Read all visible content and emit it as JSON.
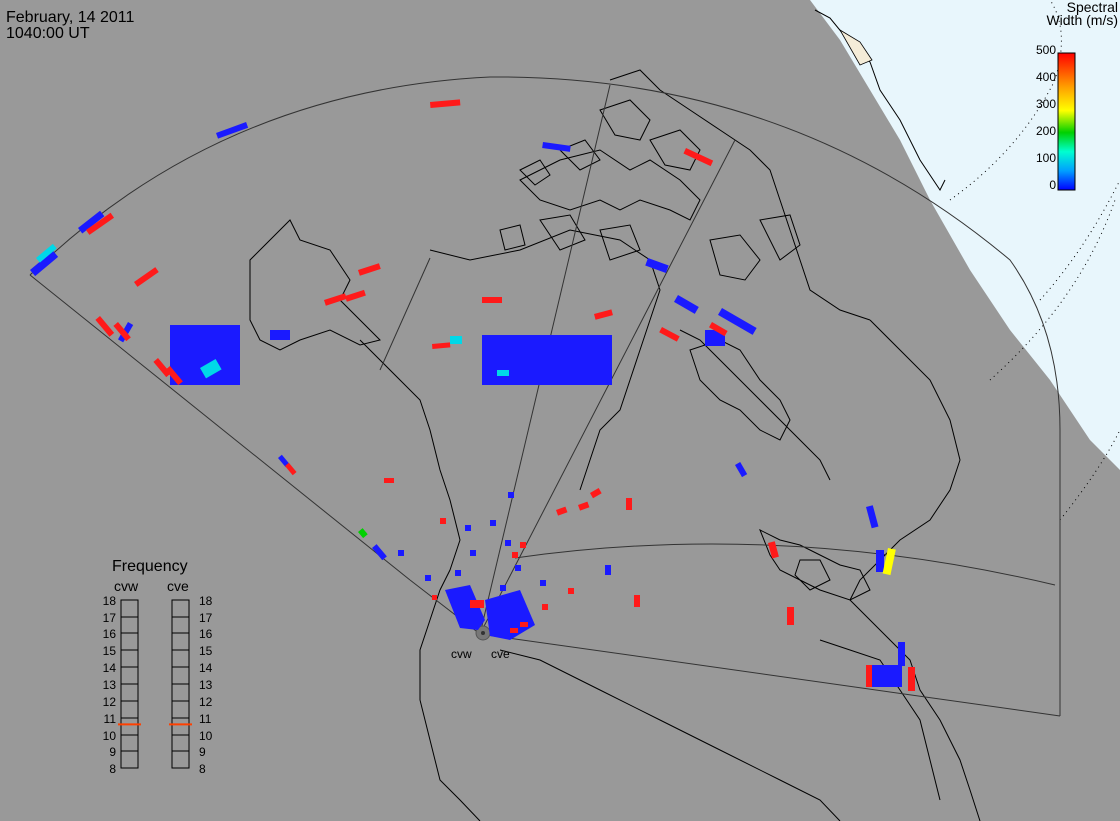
{
  "header": {
    "date": "February, 14 2011",
    "time": "1040:00 UT"
  },
  "color_scale": {
    "title_line1": "Spectral",
    "title_line2": "Width (m/s)",
    "labels": [
      "500",
      "400",
      "300",
      "200",
      "100",
      "0"
    ],
    "gradient_colors": [
      "#ff0000",
      "#ffa000",
      "#ffff00",
      "#00d000",
      "#00ffd0",
      "#00a0ff",
      "#0000ff"
    ]
  },
  "radars": {
    "west": "cvw",
    "east": "cve"
  },
  "frequency_panel": {
    "title": "Frequency",
    "left_label": "cvw",
    "right_label": "cve",
    "ticks": [
      "18",
      "17",
      "16",
      "15",
      "14",
      "13",
      "12",
      "11",
      "10",
      "9",
      "8"
    ],
    "cvw_value": 10.6,
    "cve_value": 10.6
  },
  "colors": {
    "background": "#999999",
    "polar_cap": "#e8f6fc",
    "low_width": "#1a1aff",
    "high_width": "#ff1a1a",
    "medium_width": "#00e0e0",
    "freq_marker": "#ff4000"
  }
}
